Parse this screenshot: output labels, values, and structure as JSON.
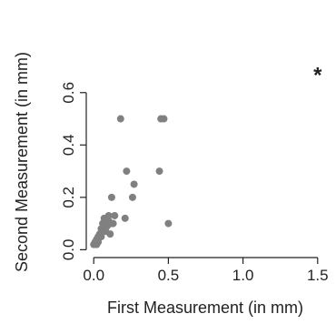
{
  "chart_data": {
    "type": "scatter",
    "xlabel": "First Measurement (in mm)",
    "ylabel": "Second Measurement (in mm)",
    "xlim": [
      -0.05,
      1.55
    ],
    "ylim": [
      -0.03,
      0.7
    ],
    "x_ticks": [
      0.0,
      0.5,
      1.0,
      1.5
    ],
    "x_tick_labels": [
      "0.0",
      "0.5",
      "1.0",
      "1.5"
    ],
    "y_ticks": [
      0.0,
      0.2,
      0.4,
      0.6
    ],
    "y_tick_labels": [
      "0.0",
      "0.2",
      "0.4",
      "0.6"
    ],
    "point_color": "#808080",
    "points": [
      {
        "x": 0.0,
        "y": 0.02
      },
      {
        "x": 0.01,
        "y": 0.03
      },
      {
        "x": 0.02,
        "y": 0.02
      },
      {
        "x": 0.02,
        "y": 0.04
      },
      {
        "x": 0.03,
        "y": 0.05
      },
      {
        "x": 0.03,
        "y": 0.03
      },
      {
        "x": 0.04,
        "y": 0.06
      },
      {
        "x": 0.05,
        "y": 0.05
      },
      {
        "x": 0.05,
        "y": 0.08
      },
      {
        "x": 0.06,
        "y": 0.07
      },
      {
        "x": 0.06,
        "y": 0.1
      },
      {
        "x": 0.07,
        "y": 0.08
      },
      {
        "x": 0.07,
        "y": 0.12
      },
      {
        "x": 0.08,
        "y": 0.1
      },
      {
        "x": 0.08,
        "y": 0.07
      },
      {
        "x": 0.09,
        "y": 0.09
      },
      {
        "x": 0.1,
        "y": 0.11
      },
      {
        "x": 0.1,
        "y": 0.13
      },
      {
        "x": 0.11,
        "y": 0.06
      },
      {
        "x": 0.12,
        "y": 0.1
      },
      {
        "x": 0.12,
        "y": 0.2
      },
      {
        "x": 0.13,
        "y": 0.1
      },
      {
        "x": 0.14,
        "y": 0.13
      },
      {
        "x": 0.18,
        "y": 0.5
      },
      {
        "x": 0.21,
        "y": 0.12
      },
      {
        "x": 0.22,
        "y": 0.3
      },
      {
        "x": 0.26,
        "y": 0.2
      },
      {
        "x": 0.27,
        "y": 0.25
      },
      {
        "x": 0.44,
        "y": 0.3
      },
      {
        "x": 0.45,
        "y": 0.5
      },
      {
        "x": 0.47,
        "y": 0.5
      },
      {
        "x": 0.5,
        "y": 0.1
      }
    ],
    "outlier": {
      "x": 1.5,
      "y": 0.67,
      "marker": "*",
      "color": "#222222"
    }
  }
}
